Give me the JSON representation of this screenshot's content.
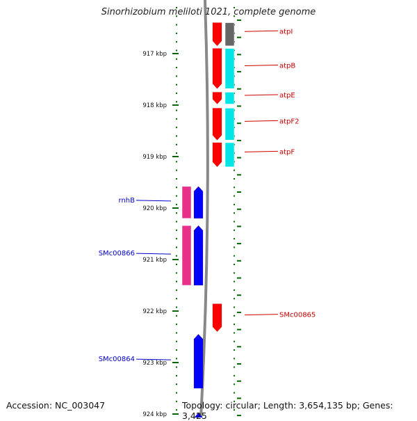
{
  "title": "Sinorhizobium meliloti 1021, complete genome",
  "footer": {
    "accession": "Accession: NC_003047",
    "summary": "Topology: circular; Length: 3,654,135 bp; Genes: 3,425"
  },
  "colors": {
    "forward_label": "#cc0000",
    "reverse_label": "#0000cc",
    "backbone": "#888888",
    "tick": "#006600"
  },
  "ticks": [
    {
      "label": "917 kbp",
      "kbp": 917
    },
    {
      "label": "918 kbp",
      "kbp": 918
    },
    {
      "label": "919 kbp",
      "kbp": 919
    },
    {
      "label": "920 kbp",
      "kbp": 920
    },
    {
      "label": "921 kbp",
      "kbp": 921
    },
    {
      "label": "922 kbp",
      "kbp": 922
    },
    {
      "label": "923 kbp",
      "kbp": 923
    },
    {
      "label": "924 kbp",
      "kbp": 924
    }
  ],
  "genes": [
    {
      "name": "atpI",
      "strand": "forward",
      "start_kbp": 916.4,
      "end_kbp": 916.85,
      "color": "#ff0000",
      "cog_color": "#666666"
    },
    {
      "name": "atpB",
      "strand": "forward",
      "start_kbp": 916.9,
      "end_kbp": 917.68,
      "color": "#ff0000",
      "cog_color": "#00e5e5"
    },
    {
      "name": "atpE",
      "strand": "forward",
      "start_kbp": 917.75,
      "end_kbp": 917.98,
      "color": "#ff0000",
      "cog_color": "#00e5e5"
    },
    {
      "name": "atpF2",
      "strand": "forward",
      "start_kbp": 918.06,
      "end_kbp": 918.68,
      "color": "#ff0000",
      "cog_color": "#00e5e5"
    },
    {
      "name": "atpF",
      "strand": "forward",
      "start_kbp": 918.73,
      "end_kbp": 919.2,
      "color": "#ff0000",
      "cog_color": "#00e5e5"
    },
    {
      "name": "rnhB",
      "strand": "reverse",
      "start_kbp": 919.58,
      "end_kbp": 920.2,
      "color": "#0000ff",
      "cog_color": "#e6308a"
    },
    {
      "name": "SMc00866",
      "strand": "reverse",
      "start_kbp": 920.34,
      "end_kbp": 921.5,
      "color": "#0000ff",
      "cog_color": "#e6308a"
    },
    {
      "name": "SMc00865",
      "strand": "forward",
      "start_kbp": 921.86,
      "end_kbp": 922.4,
      "color": "#ff0000",
      "cog_color": null
    },
    {
      "name": "SMc00864",
      "strand": "reverse",
      "start_kbp": 922.45,
      "end_kbp": 923.5,
      "color": "#0000ff",
      "cog_color": null
    },
    {
      "name": "",
      "strand": "reverse",
      "start_kbp": 923.98,
      "end_kbp": 924.3,
      "color": "#0000ff",
      "cog_color": null
    }
  ]
}
